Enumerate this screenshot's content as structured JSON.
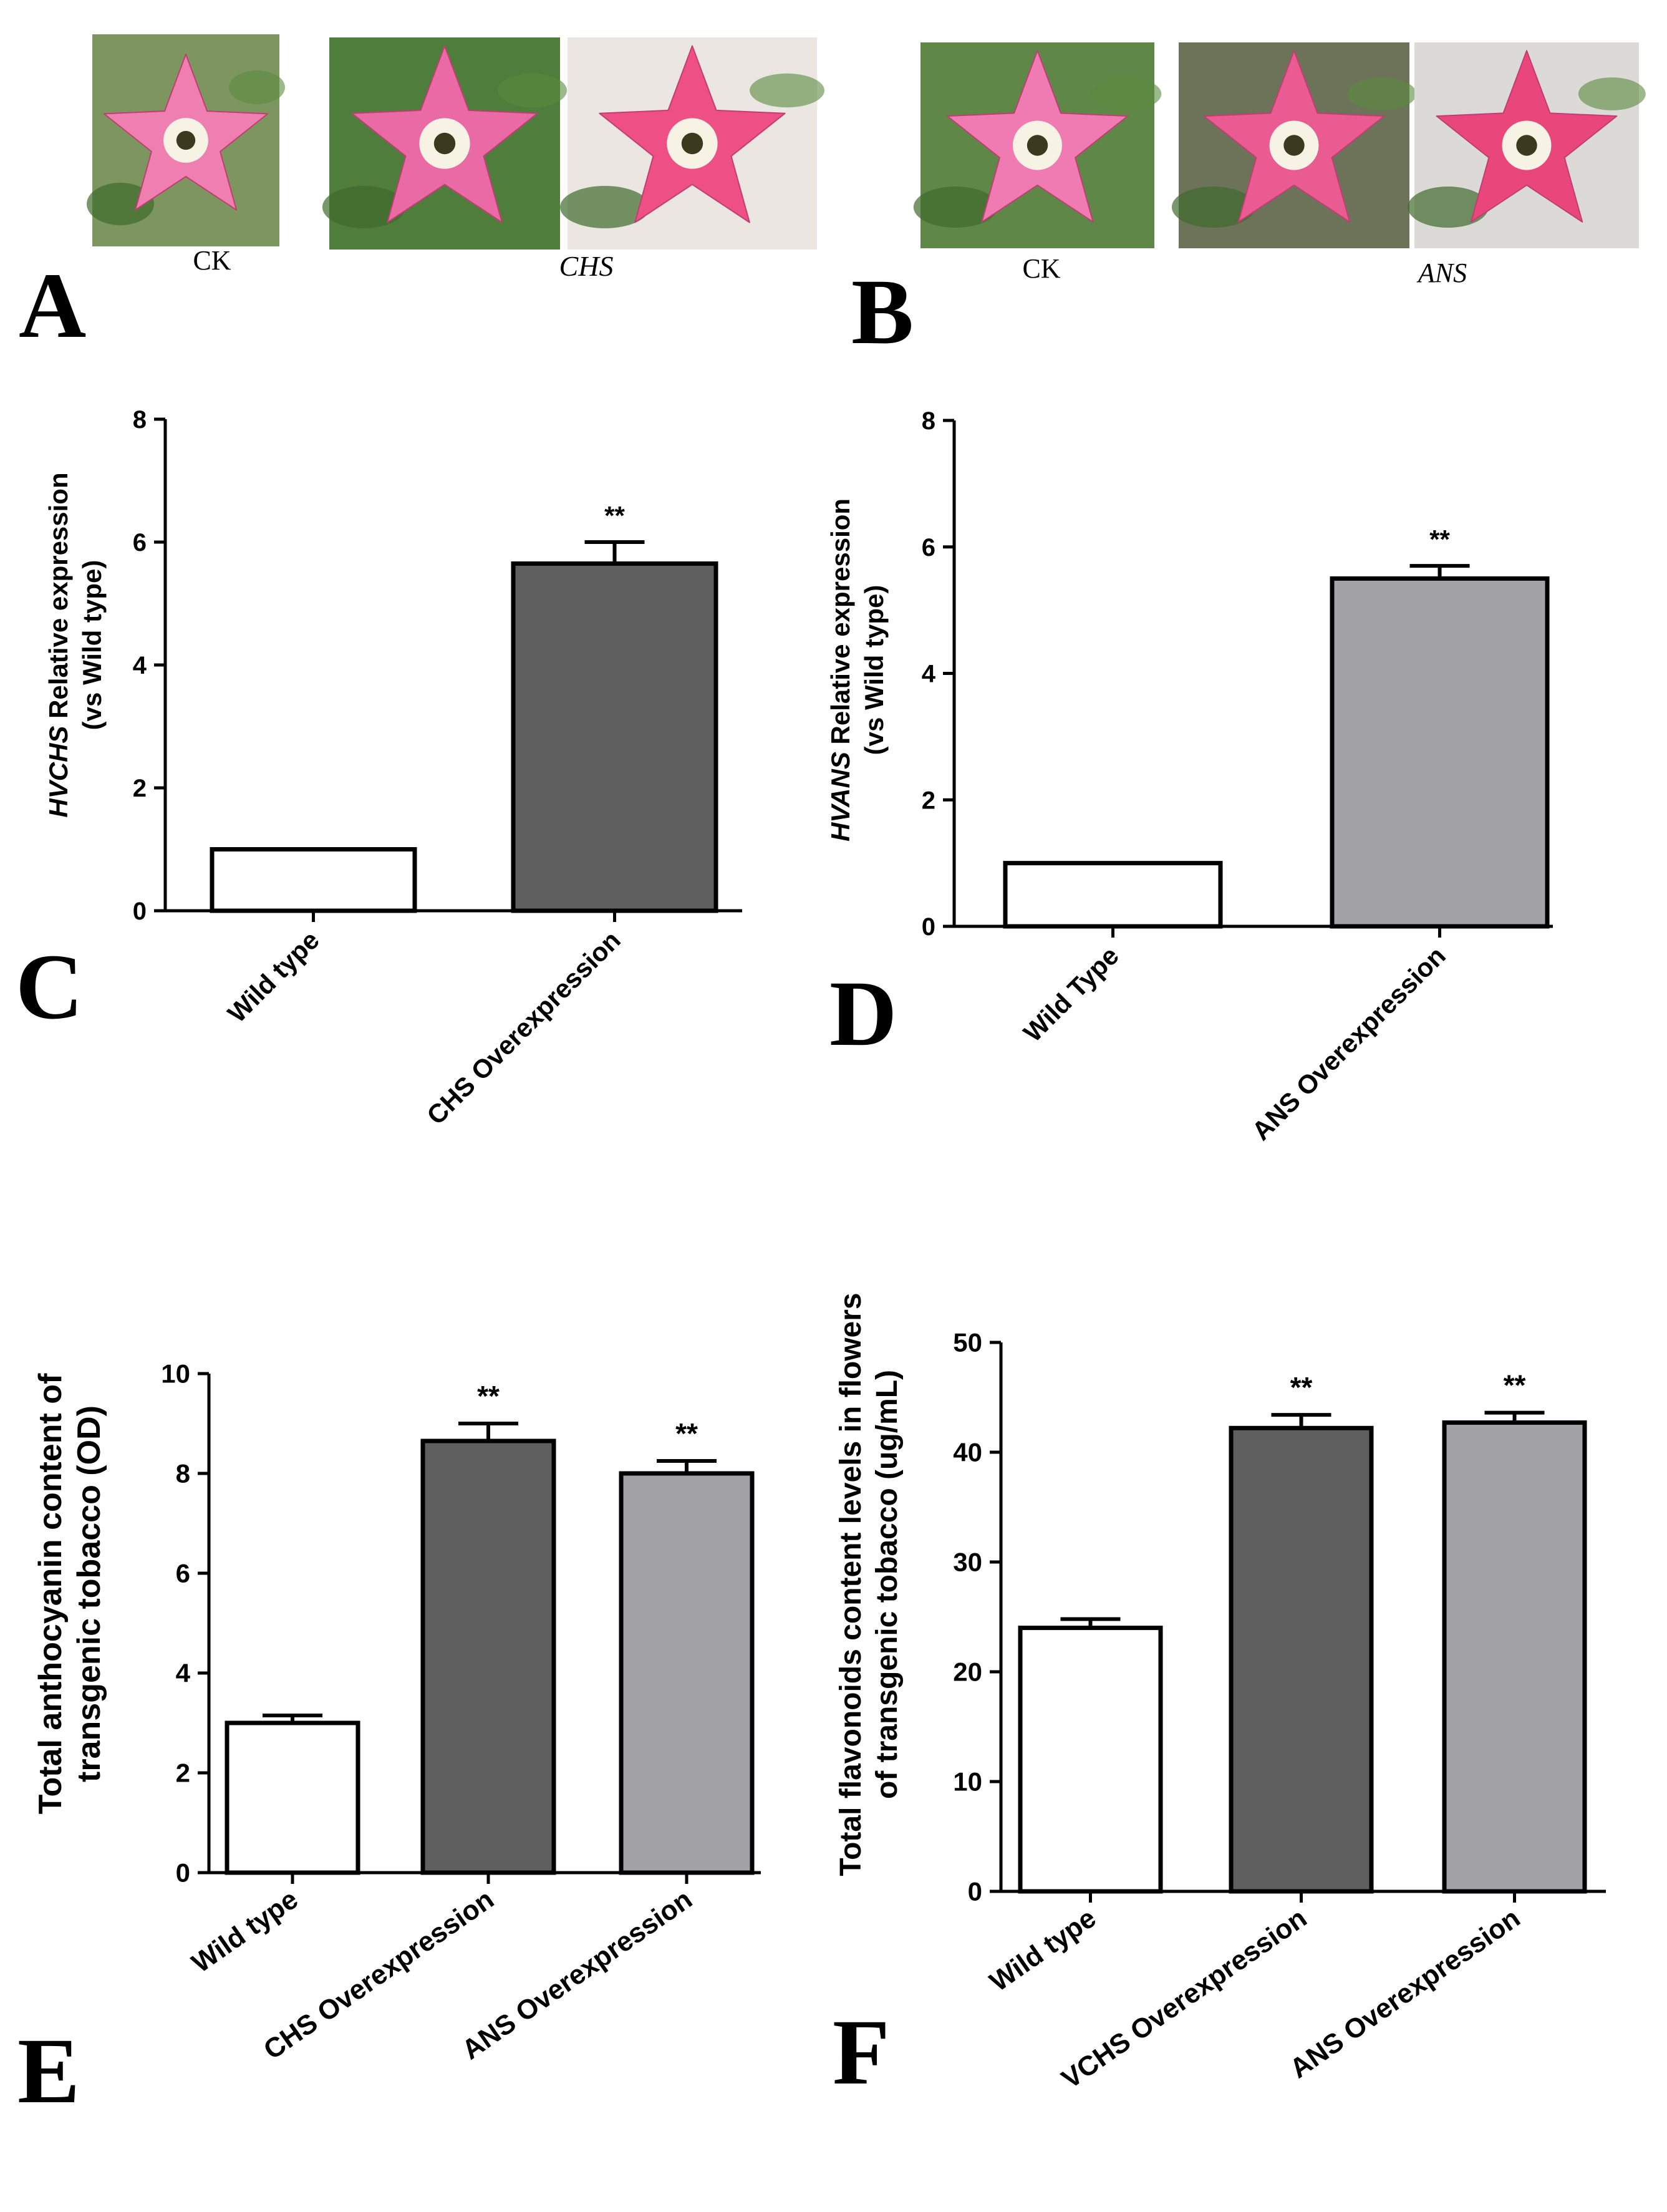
{
  "photos": {
    "A": {
      "letter": "A",
      "captions": [
        "CK",
        "CHS"
      ],
      "flowers": [
        {
          "name": "ck",
          "petal": "#ef7fb0",
          "bg": "#7d9660"
        },
        {
          "name": "chs-1",
          "petal": "#e96aa4",
          "bg": "#4f7e3c"
        },
        {
          "name": "chs-2",
          "petal": "#ee4f84",
          "bg": "#ebe6e1"
        }
      ]
    },
    "B": {
      "letter": "B",
      "captions": [
        "CK",
        "ANS"
      ],
      "flowers": [
        {
          "name": "ck",
          "petal": "#f07bb2",
          "bg": "#5f8848"
        },
        {
          "name": "ans-1",
          "petal": "#ea5b92",
          "bg": "#6c7358"
        },
        {
          "name": "ans-2",
          "petal": "#e9477c",
          "bg": "#dcdad6"
        }
      ]
    }
  },
  "colors": {
    "white_bar": "#ffffff",
    "dark_bar": "#5f5f5f",
    "light_bar": "#a3a2a6",
    "axis": "#000000"
  },
  "chart_data": [
    {
      "panel": "C",
      "type": "bar",
      "categories": [
        "Wild type",
        "CHS Overexpression"
      ],
      "values": [
        1.0,
        5.65
      ],
      "errors": [
        0,
        0.35
      ],
      "bar_colors": [
        "white",
        "dark"
      ],
      "significance": [
        "",
        "**"
      ],
      "ylabel_italic": "HVCHS",
      "ylabel_rest": " Relative expression",
      "ylabel_line2": "(vs Wild type)",
      "ylim": [
        0,
        8
      ],
      "yticks": [
        "0",
        "2",
        "4",
        "6",
        "8"
      ]
    },
    {
      "panel": "D",
      "type": "bar",
      "categories": [
        "Wild Type",
        "ANS Overexpression"
      ],
      "values": [
        1.0,
        5.5
      ],
      "errors": [
        0,
        0.2
      ],
      "bar_colors": [
        "white",
        "light"
      ],
      "significance": [
        "",
        "**"
      ],
      "ylabel_italic": "HVANS",
      "ylabel_rest": " Relative expression",
      "ylabel_line2": "(vs Wild type)",
      "ylim": [
        0,
        8
      ],
      "yticks": [
        "0",
        "2",
        "4",
        "6",
        "8"
      ]
    },
    {
      "panel": "E",
      "type": "bar",
      "categories": [
        "Wild type",
        "CHS Overexpression",
        "ANS  Overexpression"
      ],
      "values": [
        3.0,
        8.65,
        8.0
      ],
      "errors": [
        0.15,
        0.35,
        0.25
      ],
      "bar_colors": [
        "white",
        "dark",
        "light"
      ],
      "significance": [
        "",
        "**",
        "**"
      ],
      "ylabel_italic": "",
      "ylabel_rest": "Total anthocyanin content of",
      "ylabel_line2": "transgenic tobacco (OD)",
      "ylim": [
        0,
        10
      ],
      "yticks": [
        "0",
        "2",
        "4",
        "6",
        "8",
        "10"
      ]
    },
    {
      "panel": "F",
      "type": "bar",
      "categories": [
        "Wild type",
        "VCHS Overexpression",
        "ANS Overexpression"
      ],
      "values": [
        24.0,
        42.2,
        42.7
      ],
      "errors": [
        0.8,
        1.2,
        0.9
      ],
      "bar_colors": [
        "white",
        "dark",
        "light"
      ],
      "significance": [
        "",
        "**",
        "**"
      ],
      "ylabel_italic": "",
      "ylabel_rest": "Total flavonoids content levels in flowers",
      "ylabel_line2": "of transgenic tobacco (ug/mL)",
      "ylim": [
        0,
        50
      ],
      "yticks": [
        "0",
        "10",
        "20",
        "30",
        "40",
        "50"
      ]
    }
  ]
}
